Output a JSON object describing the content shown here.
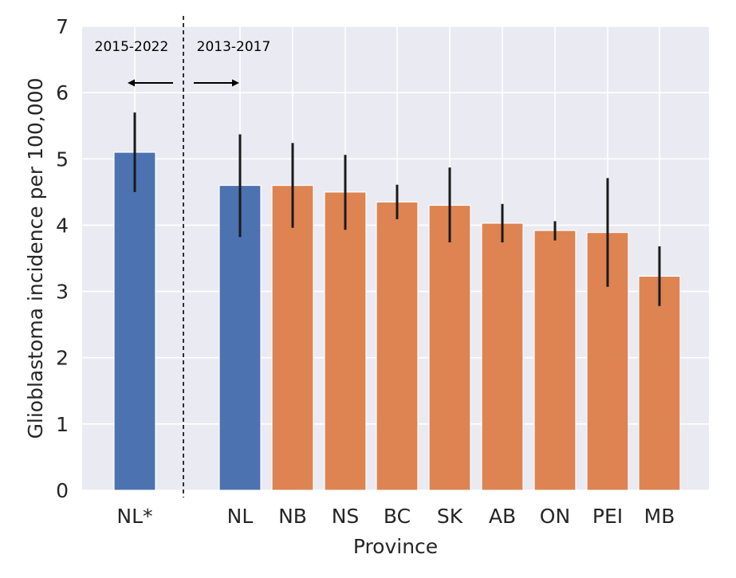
{
  "chart_data": {
    "type": "bar",
    "xlabel": "Province",
    "ylabel": "Glioblastoma incidence per 100,000",
    "ylim": [
      0,
      7
    ],
    "yticks": [
      "0",
      "1",
      "2",
      "3",
      "4",
      "5",
      "6",
      "7"
    ],
    "grid": true,
    "categories": [
      "NL*",
      "NL",
      "NB",
      "NS",
      "BC",
      "SK",
      "AB",
      "ON",
      "PEI",
      "MB"
    ],
    "values": [
      5.1,
      4.6,
      4.6,
      4.5,
      4.35,
      4.3,
      4.03,
      3.92,
      3.89,
      3.23
    ],
    "error_low": [
      4.5,
      3.82,
      3.96,
      3.93,
      4.09,
      3.74,
      3.74,
      3.77,
      3.07,
      2.78
    ],
    "error_high": [
      5.7,
      5.37,
      5.24,
      5.06,
      4.61,
      4.87,
      4.32,
      4.06,
      4.71,
      3.68
    ],
    "bar_colors": [
      "#4c72b0",
      "#4c72b0",
      "#dd8452",
      "#dd8452",
      "#dd8452",
      "#dd8452",
      "#dd8452",
      "#dd8452",
      "#dd8452",
      "#dd8452"
    ],
    "annotations": {
      "left_period": "2015-2022",
      "right_period": "2013-2017"
    }
  },
  "colors": {
    "plot_background": "#eaeaf2",
    "grid": "#ffffff",
    "error_bar": "#1a1a1a"
  }
}
